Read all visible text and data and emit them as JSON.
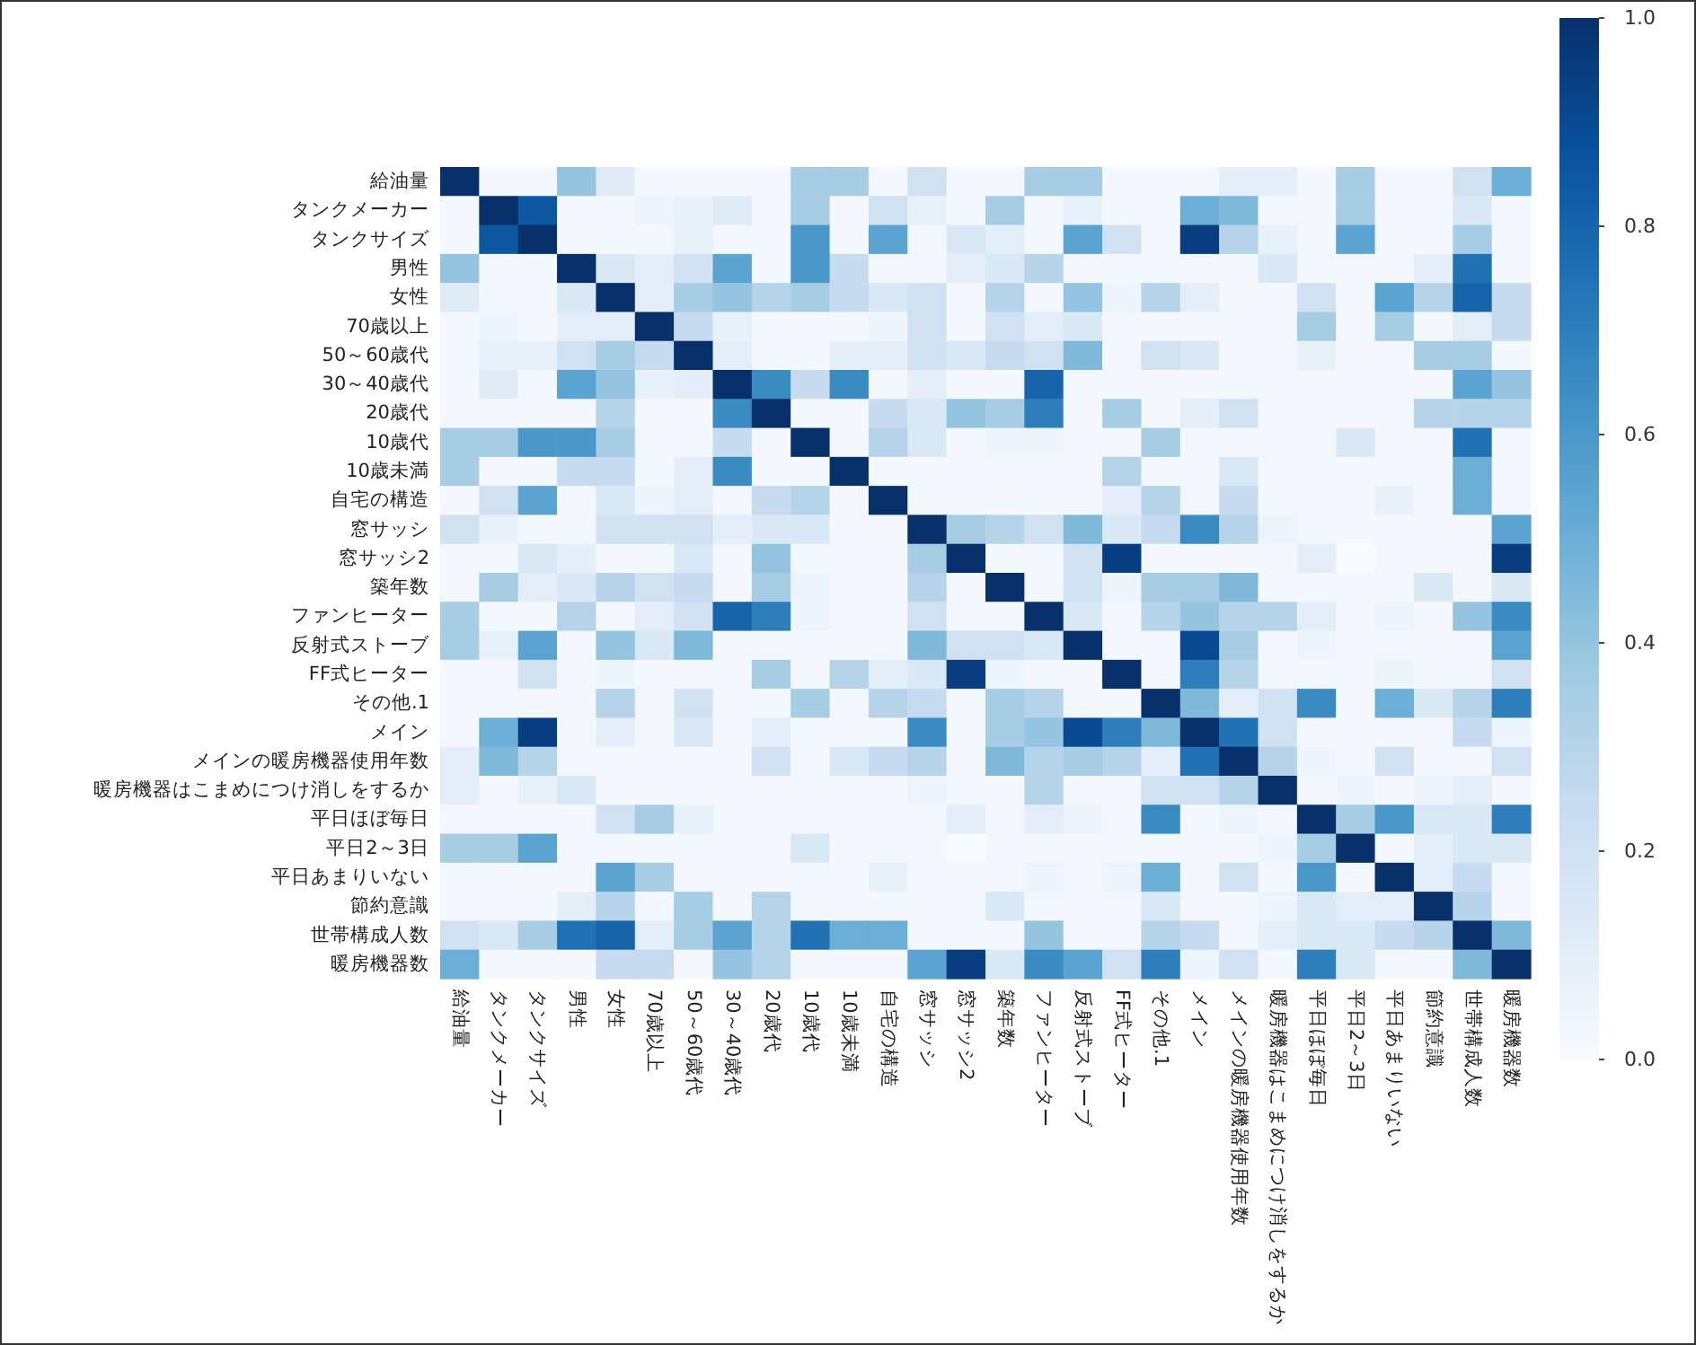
{
  "chart_data": {
    "type": "heatmap",
    "categories": [
      "給油量",
      "タンクメーカー",
      "タンクサイズ",
      "男性",
      "女性",
      "70歳以上",
      "50～60歳代",
      "30～40歳代",
      "20歳代",
      "10歳代",
      "10歳未満",
      "自宅の構造",
      "窓サッシ",
      "窓サッシ2",
      "築年数",
      "ファンヒーター",
      "反射式ストーブ",
      "FF式ヒーター",
      "その他.1",
      "メイン",
      "メインの暖房機器使用年数",
      "暖房機器はこまめにつけ消しをするか",
      "平日ほぼ毎日",
      "平日2～3日",
      "平日あまりいない",
      "節約意識",
      "世帯構成人数",
      "暖房機器数"
    ],
    "y_categories": [
      "給油量",
      "タンクメーカー",
      "タンクサイズ",
      "男性",
      "女性",
      "70歳以上",
      "50～60歳代",
      "30～40歳代",
      "20歳代",
      "10歳代",
      "10歳未満",
      "自宅の構造",
      "窓サッシ",
      "窓サッシ2",
      "築年数",
      "ファンヒーター",
      "反射式ストーブ",
      "FF式ヒーター",
      "その他.1",
      "メイン",
      "メインの暖房機器使用年数",
      "暖房機器はこまめにつけ消しをするか",
      "平日ほぼ毎日",
      "平日2～3日",
      "平日あまりいない",
      "節約意識",
      "世帯構成人数",
      "暖房機器数"
    ],
    "cells": [
      [
        1,
        0.02,
        0.02,
        0.4,
        0.12,
        0.02,
        0.02,
        0.02,
        0.02,
        0.35,
        0.35,
        0.02,
        0.2,
        0.02,
        0.02,
        0.35,
        0.35,
        0.02,
        0.02,
        0.02,
        0.1,
        0.1,
        0.02,
        0.35,
        0.02,
        0.02,
        0.2,
        0.5
      ],
      [
        0.02,
        1,
        0.85,
        0.02,
        0.02,
        0.05,
        0.08,
        0.12,
        0.02,
        0.35,
        0.02,
        0.2,
        0.08,
        0.02,
        0.35,
        0.02,
        0.08,
        0.02,
        0.02,
        0.5,
        0.45,
        0.02,
        0.02,
        0.35,
        0.02,
        0.02,
        0.15,
        0.02
      ],
      [
        0.02,
        0.85,
        1,
        0.02,
        0.02,
        0.02,
        0.08,
        0.02,
        0.02,
        0.6,
        0.02,
        0.55,
        0.02,
        0.15,
        0.1,
        0.02,
        0.55,
        0.2,
        0.02,
        0.95,
        0.3,
        0.08,
        0.02,
        0.55,
        0.02,
        0.02,
        0.35,
        0.02
      ],
      [
        0.4,
        0.02,
        0.02,
        1,
        0.15,
        0.1,
        0.2,
        0.55,
        0.02,
        0.6,
        0.25,
        0.02,
        0.02,
        0.1,
        0.15,
        0.3,
        0.02,
        0.02,
        0.02,
        0.02,
        0.02,
        0.15,
        0.02,
        0.02,
        0.02,
        0.1,
        0.75,
        0.02
      ],
      [
        0.12,
        0.02,
        0.02,
        0.15,
        1,
        0.1,
        0.35,
        0.4,
        0.3,
        0.35,
        0.25,
        0.15,
        0.2,
        0.02,
        0.3,
        0.02,
        0.4,
        0.05,
        0.3,
        0.1,
        0.02,
        0.02,
        0.2,
        0.02,
        0.55,
        0.3,
        0.8,
        0.25
      ],
      [
        0.02,
        0.05,
        0.02,
        0.1,
        0.1,
        1,
        0.25,
        0.08,
        0.02,
        0.02,
        0.02,
        0.05,
        0.2,
        0.02,
        0.2,
        0.1,
        0.15,
        0.02,
        0.02,
        0.02,
        0.02,
        0.02,
        0.35,
        0.02,
        0.35,
        0.02,
        0.1,
        0.25
      ],
      [
        0.02,
        0.08,
        0.08,
        0.2,
        0.35,
        0.25,
        1,
        0.1,
        0.02,
        0.02,
        0.1,
        0.1,
        0.2,
        0.15,
        0.25,
        0.2,
        0.45,
        0.02,
        0.2,
        0.15,
        0.02,
        0.02,
        0.08,
        0.02,
        0.02,
        0.35,
        0.35,
        0.02
      ],
      [
        0.02,
        0.12,
        0.02,
        0.55,
        0.4,
        0.08,
        0.1,
        1,
        0.65,
        0.25,
        0.65,
        0.02,
        0.1,
        0.02,
        0.02,
        0.8,
        0.02,
        0.02,
        0.02,
        0.02,
        0.02,
        0.02,
        0.02,
        0.02,
        0.02,
        0.02,
        0.55,
        0.4
      ],
      [
        0.02,
        0.02,
        0.02,
        0.02,
        0.3,
        0.02,
        0.02,
        0.65,
        1,
        0.02,
        0.02,
        0.25,
        0.15,
        0.4,
        0.35,
        0.7,
        0.02,
        0.35,
        0.02,
        0.1,
        0.2,
        0.02,
        0.02,
        0.02,
        0.02,
        0.3,
        0.3,
        0.3
      ],
      [
        0.35,
        0.35,
        0.6,
        0.6,
        0.35,
        0.02,
        0.02,
        0.25,
        0.02,
        1,
        0.02,
        0.3,
        0.15,
        0.02,
        0.05,
        0.05,
        0.02,
        0.02,
        0.35,
        0.02,
        0.02,
        0.02,
        0.02,
        0.15,
        0.02,
        0.02,
        0.75,
        0.02
      ],
      [
        0.35,
        0.02,
        0.02,
        0.25,
        0.25,
        0.02,
        0.1,
        0.65,
        0.02,
        0.02,
        1,
        0.02,
        0.02,
        0.02,
        0.02,
        0.02,
        0.02,
        0.3,
        0.02,
        0.02,
        0.15,
        0.02,
        0.02,
        0.02,
        0.02,
        0.02,
        0.5,
        0.02
      ],
      [
        0.02,
        0.2,
        0.55,
        0.02,
        0.15,
        0.05,
        0.1,
        0.02,
        0.25,
        0.3,
        0.02,
        1,
        0.02,
        0.02,
        0.02,
        0.02,
        0.02,
        0.1,
        0.3,
        0.02,
        0.25,
        0.02,
        0.02,
        0.02,
        0.08,
        0.02,
        0.5,
        0.02
      ],
      [
        0.2,
        0.08,
        0.02,
        0.02,
        0.2,
        0.2,
        0.2,
        0.1,
        0.15,
        0.15,
        0.02,
        0.02,
        1,
        0.35,
        0.3,
        0.2,
        0.45,
        0.15,
        0.25,
        0.65,
        0.3,
        0.05,
        0.02,
        0.02,
        0.02,
        0.02,
        0.02,
        0.55
      ],
      [
        0.02,
        0.02,
        0.15,
        0.1,
        0.02,
        0.02,
        0.15,
        0.02,
        0.4,
        0.02,
        0.02,
        0.02,
        0.35,
        1,
        0.02,
        0.02,
        0.2,
        0.95,
        0.02,
        0.02,
        0.02,
        0.02,
        0.1,
        0.0,
        0.02,
        0.02,
        0.02,
        0.95
      ],
      [
        0.02,
        0.35,
        0.1,
        0.15,
        0.3,
        0.2,
        0.25,
        0.02,
        0.35,
        0.05,
        0.02,
        0.02,
        0.3,
        0.02,
        1,
        0.02,
        0.2,
        0.05,
        0.35,
        0.35,
        0.45,
        0.02,
        0.02,
        0.02,
        0.02,
        0.15,
        0.02,
        0.15
      ],
      [
        0.35,
        0.02,
        0.02,
        0.3,
        0.02,
        0.1,
        0.2,
        0.8,
        0.7,
        0.05,
        0.02,
        0.02,
        0.2,
        0.02,
        0.02,
        1,
        0.15,
        0.02,
        0.3,
        0.4,
        0.3,
        0.3,
        0.1,
        0.02,
        0.05,
        0.02,
        0.4,
        0.65
      ],
      [
        0.35,
        0.08,
        0.55,
        0.02,
        0.4,
        0.15,
        0.45,
        0.02,
        0.02,
        0.02,
        0.02,
        0.02,
        0.45,
        0.2,
        0.2,
        0.15,
        1,
        0.02,
        0.02,
        0.9,
        0.35,
        0.02,
        0.05,
        0.02,
        0.02,
        0.02,
        0.02,
        0.55
      ],
      [
        0.02,
        0.02,
        0.2,
        0.02,
        0.05,
        0.02,
        0.02,
        0.02,
        0.35,
        0.02,
        0.3,
        0.1,
        0.15,
        0.95,
        0.05,
        0.02,
        0.02,
        1,
        0.02,
        0.7,
        0.3,
        0.02,
        0.02,
        0.02,
        0.05,
        0.02,
        0.02,
        0.2
      ],
      [
        0.02,
        0.02,
        0.02,
        0.02,
        0.3,
        0.02,
        0.2,
        0.02,
        0.02,
        0.35,
        0.02,
        0.3,
        0.25,
        0.02,
        0.35,
        0.3,
        0.02,
        0.02,
        1,
        0.45,
        0.1,
        0.2,
        0.65,
        0.02,
        0.5,
        0.15,
        0.3,
        0.7
      ],
      [
        0.02,
        0.5,
        0.95,
        0.02,
        0.1,
        0.02,
        0.15,
        0.02,
        0.1,
        0.02,
        0.02,
        0.02,
        0.65,
        0.02,
        0.35,
        0.4,
        0.9,
        0.7,
        0.45,
        1,
        0.75,
        0.2,
        0.02,
        0.02,
        0.02,
        0.02,
        0.25,
        0.05
      ],
      [
        0.1,
        0.45,
        0.3,
        0.02,
        0.02,
        0.02,
        0.02,
        0.02,
        0.2,
        0.02,
        0.15,
        0.25,
        0.3,
        0.02,
        0.45,
        0.3,
        0.35,
        0.3,
        0.1,
        0.75,
        1,
        0.3,
        0.05,
        0.02,
        0.2,
        0.02,
        0.02,
        0.2
      ],
      [
        0.1,
        0.02,
        0.08,
        0.15,
        0.02,
        0.02,
        0.02,
        0.02,
        0.02,
        0.02,
        0.02,
        0.02,
        0.05,
        0.02,
        0.02,
        0.3,
        0.02,
        0.02,
        0.2,
        0.2,
        0.3,
        1,
        0.02,
        0.05,
        0.02,
        0.05,
        0.1,
        0.02
      ],
      [
        0.02,
        0.02,
        0.02,
        0.02,
        0.2,
        0.35,
        0.08,
        0.02,
        0.02,
        0.02,
        0.02,
        0.02,
        0.02,
        0.1,
        0.02,
        0.1,
        0.05,
        0.02,
        0.65,
        0.02,
        0.05,
        0.02,
        1,
        0.35,
        0.6,
        0.15,
        0.15,
        0.7
      ],
      [
        0.35,
        0.35,
        0.55,
        0.02,
        0.02,
        0.02,
        0.02,
        0.02,
        0.02,
        0.15,
        0.02,
        0.02,
        0.02,
        0.0,
        0.02,
        0.02,
        0.02,
        0.02,
        0.02,
        0.02,
        0.02,
        0.05,
        0.35,
        1,
        0.02,
        0.1,
        0.15,
        0.15
      ],
      [
        0.02,
        0.02,
        0.02,
        0.02,
        0.55,
        0.35,
        0.02,
        0.02,
        0.02,
        0.02,
        0.02,
        0.08,
        0.02,
        0.02,
        0.02,
        0.05,
        0.02,
        0.05,
        0.5,
        0.02,
        0.2,
        0.02,
        0.6,
        0.02,
        1,
        0.1,
        0.25,
        0.02
      ],
      [
        0.02,
        0.02,
        0.02,
        0.1,
        0.3,
        0.02,
        0.35,
        0.02,
        0.3,
        0.02,
        0.02,
        0.02,
        0.02,
        0.02,
        0.15,
        0.02,
        0.02,
        0.02,
        0.15,
        0.02,
        0.02,
        0.05,
        0.15,
        0.1,
        0.1,
        1,
        0.3,
        0.02
      ],
      [
        0.2,
        0.15,
        0.35,
        0.75,
        0.8,
        0.1,
        0.35,
        0.55,
        0.3,
        0.75,
        0.5,
        0.5,
        0.02,
        0.02,
        0.02,
        0.4,
        0.02,
        0.02,
        0.3,
        0.25,
        0.02,
        0.1,
        0.15,
        0.15,
        0.25,
        0.3,
        1,
        0.45
      ],
      [
        0.5,
        0.02,
        0.02,
        0.02,
        0.25,
        0.25,
        0.02,
        0.4,
        0.3,
        0.02,
        0.02,
        0.02,
        0.55,
        0.95,
        0.15,
        0.65,
        0.55,
        0.2,
        0.7,
        0.05,
        0.2,
        0.02,
        0.7,
        0.15,
        0.02,
        0.02,
        0.45,
        1
      ]
    ],
    "clim": [
      0,
      1
    ],
    "cticks": [
      {
        "value": 0,
        "label": "0.0"
      },
      {
        "value": 0.2,
        "label": "0.2"
      },
      {
        "value": 0.4,
        "label": "0.4"
      },
      {
        "value": 0.6,
        "label": "0.6"
      },
      {
        "value": 0.8,
        "label": "0.8"
      },
      {
        "value": 1,
        "label": "1.0"
      }
    ]
  }
}
